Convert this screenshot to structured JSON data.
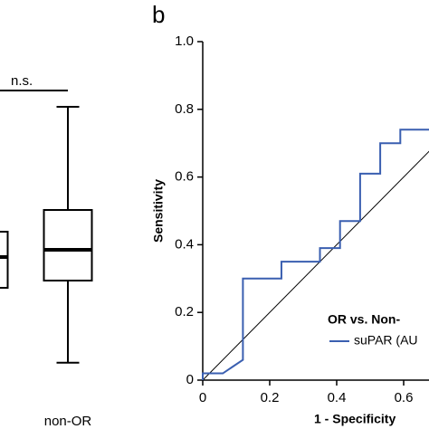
{
  "chart_data": [
    {
      "type": "box",
      "categories": [
        null,
        "non-OR"
      ],
      "boxes": [
        {
          "q1": 3.05,
          "median": 3.9,
          "q3": 4.6
        },
        {
          "min": 0.98,
          "q1": 3.25,
          "median": 4.1,
          "q3": 5.2,
          "max": 8.05
        }
      ],
      "ylim": [
        0,
        10.5
      ],
      "annotation": "n.s.",
      "color": "#000000"
    },
    {
      "type": "line",
      "panel_label": "b",
      "xlabel": "1 - Specificity",
      "ylabel": "Sensitivity",
      "legend_title": "OR vs. Non-",
      "x": [
        0,
        0,
        0.06,
        0.12,
        0.12,
        0.235,
        0.235,
        0.35,
        0.35,
        0.41,
        0.41,
        0.47,
        0.47,
        0.53,
        0.53,
        0.59,
        0.59,
        0.68
      ],
      "series": [
        {
          "name": "suPAR (AU",
          "color": "#3a5fb0",
          "values": [
            0,
            0.02,
            0.02,
            0.06,
            0.3,
            0.3,
            0.35,
            0.35,
            0.39,
            0.39,
            0.47,
            0.47,
            0.61,
            0.61,
            0.7,
            0.7,
            0.74,
            0.74
          ]
        }
      ],
      "xlim": [
        0,
        1
      ],
      "ylim": [
        0,
        1
      ],
      "xticks": [
        0,
        0.2,
        0.4,
        0.6
      ],
      "yticks": [
        0,
        0.2,
        0.4,
        0.6,
        0.8,
        {
          "value": 1,
          "label": "1.0"
        }
      ],
      "diagonal": true
    }
  ]
}
